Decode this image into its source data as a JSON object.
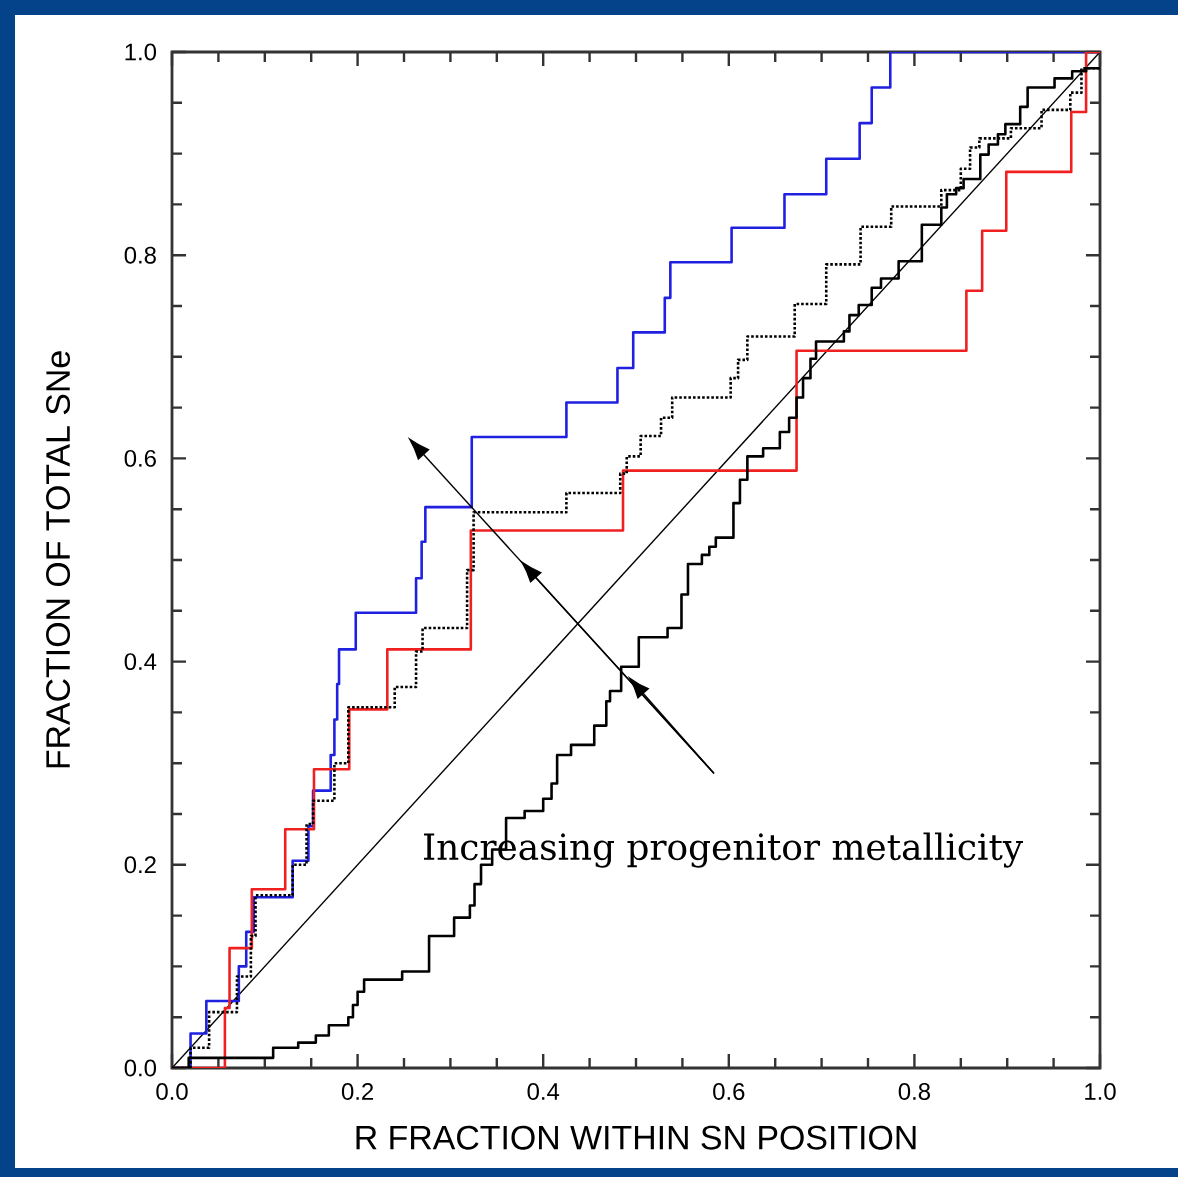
{
  "chart_data": {
    "type": "step",
    "xlabel": "R FRACTION WITHIN SN POSITION",
    "ylabel": "FRACTION OF TOTAL SNe",
    "annotations": [
      "Increasing progenitor metallicity"
    ],
    "xlim": [
      0,
      1
    ],
    "ylim": [
      0,
      1
    ],
    "xticks": [
      {
        "value": 0,
        "label": "0.0"
      },
      {
        "value": 0.05,
        "label": null
      },
      {
        "value": 0.1,
        "label": null
      },
      {
        "value": 0.15,
        "label": null
      },
      {
        "value": 0.2,
        "label": "0.2"
      },
      {
        "value": 0.25,
        "label": null
      },
      {
        "value": 0.3,
        "label": null
      },
      {
        "value": 0.35,
        "label": null
      },
      {
        "value": 0.4,
        "label": "0.4"
      },
      {
        "value": 0.45,
        "label": null
      },
      {
        "value": 0.5,
        "label": null
      },
      {
        "value": 0.55,
        "label": null
      },
      {
        "value": 0.6,
        "label": "0.6"
      },
      {
        "value": 0.65,
        "label": null
      },
      {
        "value": 0.7,
        "label": null
      },
      {
        "value": 0.75,
        "label": null
      },
      {
        "value": 0.8,
        "label": "0.8"
      },
      {
        "value": 0.85,
        "label": null
      },
      {
        "value": 0.9,
        "label": null
      },
      {
        "value": 0.95,
        "label": null
      },
      {
        "value": 1,
        "label": "1.0"
      }
    ],
    "yticks": [
      {
        "value": 0,
        "label": "0.0"
      },
      {
        "value": 0.05,
        "label": null
      },
      {
        "value": 0.1,
        "label": null
      },
      {
        "value": 0.15,
        "label": null
      },
      {
        "value": 0.2,
        "label": "0.2"
      },
      {
        "value": 0.25,
        "label": null
      },
      {
        "value": 0.3,
        "label": null
      },
      {
        "value": 0.35,
        "label": null
      },
      {
        "value": 0.4,
        "label": "0.4"
      },
      {
        "value": 0.45,
        "label": null
      },
      {
        "value": 0.5,
        "label": null
      },
      {
        "value": 0.55,
        "label": null
      },
      {
        "value": 0.6,
        "label": "0.6"
      },
      {
        "value": 0.65,
        "label": null
      },
      {
        "value": 0.7,
        "label": null
      },
      {
        "value": 0.75,
        "label": null
      },
      {
        "value": 0.8,
        "label": "0.8"
      },
      {
        "value": 0.85,
        "label": null
      },
      {
        "value": 0.9,
        "label": null
      },
      {
        "value": 0.95,
        "label": null
      },
      {
        "value": 1,
        "label": "1.0"
      }
    ],
    "series": [
      {
        "type": "line",
        "color": "#000000",
        "x": [
          0,
          1
        ],
        "values": [
          0,
          1
        ]
      },
      {
        "color": "#2020e0",
        "x": [
          0,
          0.02,
          0.037,
          0.072,
          0.08,
          0.088,
          0.13,
          0.147,
          0.152,
          0.171,
          0.175,
          0.178,
          0.18,
          0.198,
          0.263,
          0.269,
          0.273,
          0.323,
          0.425,
          0.48,
          0.497,
          0.531,
          0.537,
          0.603,
          0.66,
          0.705,
          0.741,
          0.754,
          0.774,
          1.0
        ],
        "values": [
          0,
          0.034,
          0.066,
          0.1,
          0.134,
          0.168,
          0.204,
          0.238,
          0.273,
          0.308,
          0.343,
          0.378,
          0.412,
          0.448,
          0.482,
          0.518,
          0.552,
          0.621,
          0.655,
          0.689,
          0.724,
          0.758,
          0.793,
          0.827,
          0.86,
          0.895,
          0.93,
          0.965,
          1.0,
          1.0
        ]
      },
      {
        "color": "#f02020",
        "x": [
          0,
          0.057,
          0.062,
          0.086,
          0.122,
          0.153,
          0.191,
          0.232,
          0.322,
          0.486,
          0.673,
          0.856,
          0.873,
          0.899,
          0.969,
          0.985,
          1.0
        ],
        "values": [
          0,
          0.059,
          0.118,
          0.176,
          0.235,
          0.294,
          0.353,
          0.412,
          0.529,
          0.588,
          0.706,
          0.765,
          0.824,
          0.882,
          0.941,
          1.0,
          1.0
        ]
      },
      {
        "color": "#000000",
        "line_style": "dotted",
        "x": [
          0,
          0.02,
          0.04,
          0.07,
          0.085,
          0.09,
          0.13,
          0.145,
          0.152,
          0.175,
          0.19,
          0.24,
          0.263,
          0.27,
          0.318,
          0.325,
          0.425,
          0.483,
          0.49,
          0.505,
          0.527,
          0.539,
          0.602,
          0.61,
          0.62,
          0.671,
          0.705,
          0.742,
          0.775,
          0.829,
          0.85,
          0.86,
          0.87,
          0.904,
          0.937,
          0.968,
          0.98,
          1.0
        ],
        "values": [
          0,
          0.02,
          0.055,
          0.09,
          0.13,
          0.17,
          0.2,
          0.24,
          0.263,
          0.3,
          0.355,
          0.375,
          0.41,
          0.433,
          0.49,
          0.547,
          0.566,
          0.585,
          0.602,
          0.622,
          0.64,
          0.66,
          0.679,
          0.697,
          0.72,
          0.752,
          0.791,
          0.828,
          0.848,
          0.864,
          0.885,
          0.906,
          0.915,
          0.925,
          0.943,
          0.96,
          0.984,
          0.984
        ]
      },
      {
        "color": "#000000",
        "x": [
          0,
          0.018,
          0.109,
          0.136,
          0.155,
          0.169,
          0.19,
          0.195,
          0.2,
          0.207,
          0.248,
          0.277,
          0.304,
          0.321,
          0.326,
          0.333,
          0.345,
          0.36,
          0.38,
          0.4,
          0.409,
          0.415,
          0.43,
          0.455,
          0.468,
          0.472,
          0.484,
          0.503,
          0.534,
          0.549,
          0.556,
          0.571,
          0.579,
          0.586,
          0.605,
          0.612,
          0.62,
          0.637,
          0.655,
          0.665,
          0.673,
          0.68,
          0.688,
          0.694,
          0.724,
          0.73,
          0.74,
          0.754,
          0.764,
          0.783,
          0.808,
          0.829,
          0.835,
          0.845,
          0.853,
          0.871,
          0.88,
          0.89,
          0.898,
          0.914,
          0.922,
          0.951,
          0.97,
          0.985,
          1.0
        ],
        "values": [
          0,
          0.01,
          0.02,
          0.025,
          0.032,
          0.042,
          0.05,
          0.062,
          0.075,
          0.087,
          0.095,
          0.13,
          0.148,
          0.16,
          0.181,
          0.2,
          0.215,
          0.246,
          0.253,
          0.265,
          0.28,
          0.308,
          0.318,
          0.337,
          0.361,
          0.371,
          0.395,
          0.424,
          0.433,
          0.466,
          0.496,
          0.505,
          0.513,
          0.522,
          0.556,
          0.579,
          0.602,
          0.61,
          0.626,
          0.64,
          0.66,
          0.679,
          0.698,
          0.715,
          0.725,
          0.741,
          0.751,
          0.768,
          0.777,
          0.794,
          0.83,
          0.847,
          0.86,
          0.866,
          0.875,
          0.899,
          0.909,
          0.919,
          0.929,
          0.946,
          0.965,
          0.974,
          0.981,
          0.984,
          0.984
        ]
      }
    ]
  }
}
